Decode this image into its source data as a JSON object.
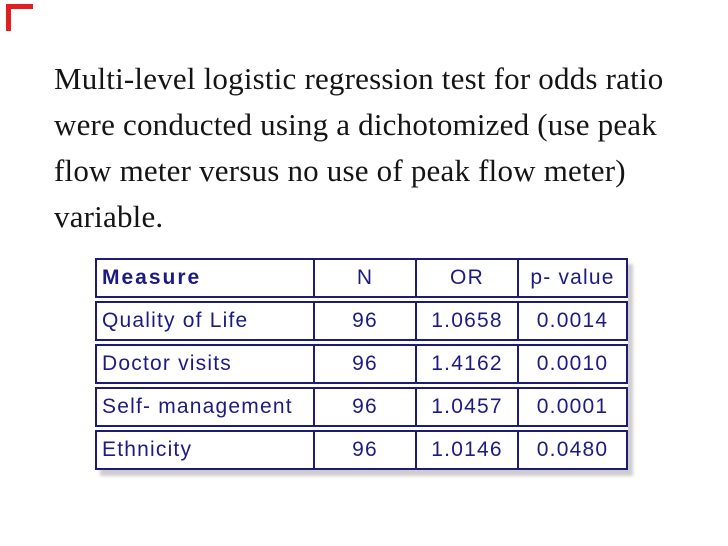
{
  "colors": {
    "navy_text": "#1b1b82",
    "navy_border": "#1c1c78",
    "red_mark": "#e02020",
    "paragraph_text": "#141414",
    "shadow": "#919191"
  },
  "paragraph": {
    "lines": [
      "Multi-level logistic regression test for odds ratio",
      "were conducted using a dichotomized (use peak",
      "flow meter versus no use of peak flow meter)",
      "variable."
    ]
  },
  "table": {
    "headers": [
      "Measure",
      "N",
      "OR",
      "p- value"
    ],
    "rows": [
      {
        "measure": "Quality of Life",
        "n": "96",
        "or": "1.0658",
        "p": "0.0014"
      },
      {
        "measure": "Doctor visits",
        "n": "96",
        "or": "1.4162",
        "p": "0.0010"
      },
      {
        "measure": "Self- management",
        "n": "96",
        "or": "1.0457",
        "p": "0.0001"
      },
      {
        "measure": "Ethnicity",
        "n": "96",
        "or": "1.0146",
        "p": "0.0480"
      }
    ]
  }
}
